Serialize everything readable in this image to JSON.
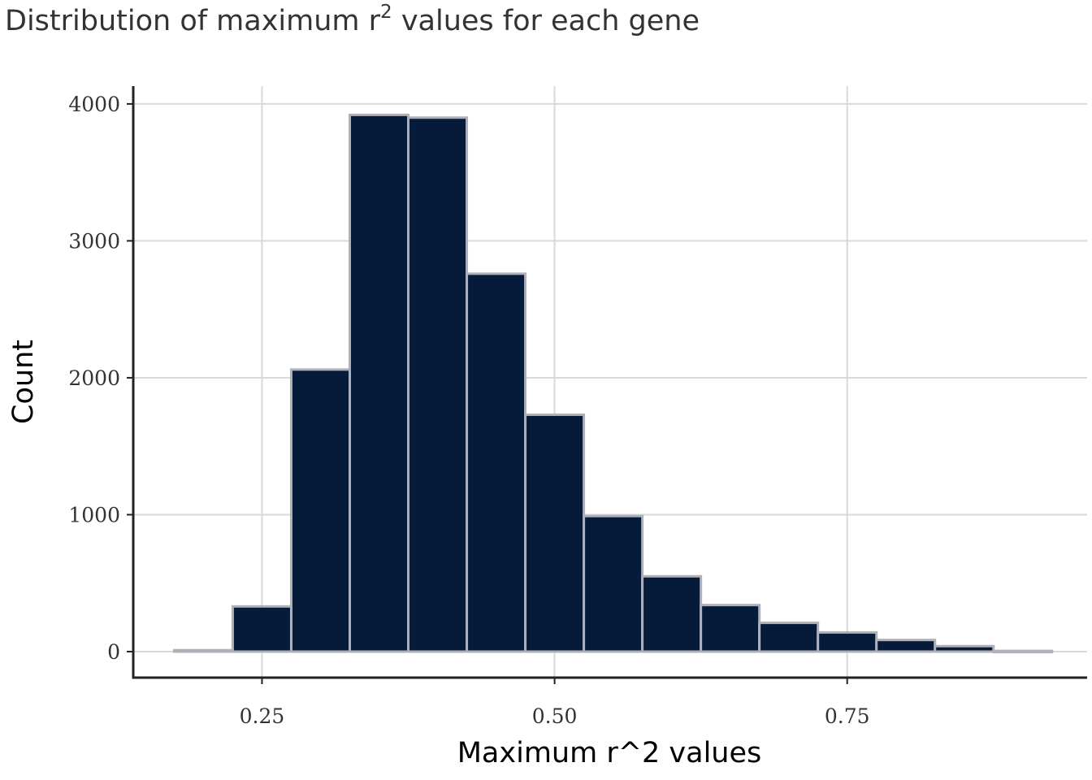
{
  "chart_data": {
    "type": "bar",
    "title": {
      "prefix": "Distribution of maximum r",
      "superscript": "2",
      "suffix": " values for each gene"
    },
    "xlabel": "Maximum r^2 values",
    "ylabel": "Count",
    "xlim": [
      0.14,
      0.955
    ],
    "ylim": [
      -190,
      4130
    ],
    "x_ticks": [
      {
        "value": 0.25,
        "label": "0.25"
      },
      {
        "value": 0.5,
        "label": "0.50"
      },
      {
        "value": 0.75,
        "label": "0.75"
      }
    ],
    "y_ticks": [
      {
        "value": 0,
        "label": "0"
      },
      {
        "value": 1000,
        "label": "1000"
      },
      {
        "value": 2000,
        "label": "2000"
      },
      {
        "value": 3000,
        "label": "3000"
      },
      {
        "value": 4000,
        "label": "4000"
      }
    ],
    "bin_width": 0.05,
    "bins": [
      {
        "center": 0.2,
        "count": 10
      },
      {
        "center": 0.25,
        "count": 330
      },
      {
        "center": 0.3,
        "count": 2060
      },
      {
        "center": 0.35,
        "count": 3920
      },
      {
        "center": 0.4,
        "count": 3900
      },
      {
        "center": 0.45,
        "count": 2760
      },
      {
        "center": 0.5,
        "count": 1730
      },
      {
        "center": 0.55,
        "count": 990
      },
      {
        "center": 0.6,
        "count": 550
      },
      {
        "center": 0.65,
        "count": 340
      },
      {
        "center": 0.7,
        "count": 210
      },
      {
        "center": 0.75,
        "count": 140
      },
      {
        "center": 0.8,
        "count": 85
      },
      {
        "center": 0.85,
        "count": 40
      },
      {
        "center": 0.9,
        "count": 5
      }
    ],
    "grid": true,
    "colors": {
      "bar_fill": "#061a3a",
      "bar_edge": "#b0b0b8",
      "grid": "#d9d9d9",
      "axis": "#222222"
    }
  }
}
